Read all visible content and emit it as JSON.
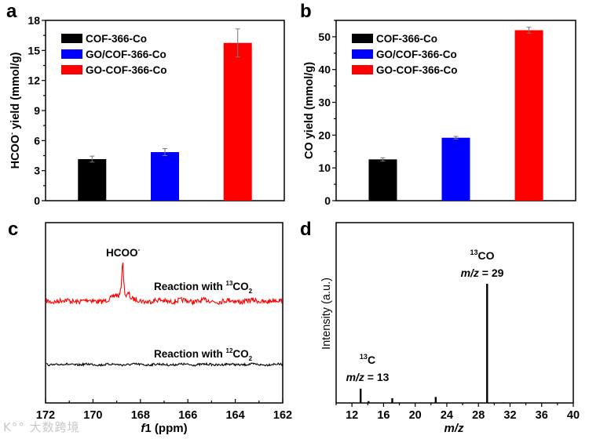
{
  "chart_data": [
    {
      "panel_label": "a",
      "type": "bar",
      "categories": [
        "COF-366-Co",
        "GO/COF-366-Co",
        "GO-COF-366-Co"
      ],
      "values": [
        4.15,
        4.85,
        15.75
      ],
      "errors": [
        0.3,
        0.35,
        1.4
      ],
      "colors": [
        "#000000",
        "#0000ff",
        "#ff0000"
      ],
      "ylabel_parts": [
        "HCOO",
        "-",
        " yield (mmol/g)"
      ],
      "xlabel": "",
      "ylim": [
        0,
        18
      ],
      "yticks": [
        0,
        3,
        6,
        9,
        12,
        15,
        18
      ],
      "legend": {
        "entries": [
          "COF-366-Co",
          "GO/COF-366-Co",
          "GO-COF-366-Co"
        ],
        "placement": "top-left"
      },
      "grid": false
    },
    {
      "panel_label": "b",
      "type": "bar",
      "categories": [
        "COF-366-Co",
        "GO/COF-366-Co",
        "GO-COF-366-Co"
      ],
      "values": [
        12.6,
        19.2,
        52.0
      ],
      "errors": [
        0.5,
        0.4,
        0.9
      ],
      "colors": [
        "#000000",
        "#0000ff",
        "#ff0000"
      ],
      "ylabel": "CO yield (mmol/g)",
      "xlabel": "",
      "ylim": [
        0,
        55
      ],
      "yticks": [
        0,
        10,
        20,
        30,
        40,
        50
      ],
      "legend": {
        "entries": [
          "COF-366-Co",
          "GO/COF-366-Co",
          "GO-COF-366-Co"
        ],
        "placement": "top-left"
      },
      "grid": false
    },
    {
      "panel_label": "c",
      "type": "line",
      "xlabel_italic": "f",
      "xlabel_rest": "1 (ppm)",
      "xlim": [
        172,
        162
      ],
      "xticks": [
        172,
        170,
        168,
        166,
        164,
        162
      ],
      "series": [
        {
          "name_parts": [
            "Reaction with ",
            "13",
            "CO",
            "2"
          ],
          "color": "#ff0000",
          "peak_ppm": 168.75,
          "peak_label_parts": [
            "HCOO",
            "-"
          ]
        },
        {
          "name_parts": [
            "Reaction with ",
            "12",
            "CO",
            "2"
          ],
          "color": "#000000"
        }
      ],
      "grid": false
    },
    {
      "panel_label": "d",
      "type": "bar",
      "subtype": "mass-spectrum",
      "xlabel": "m/z",
      "ylabel": "Intensity (a.u.)",
      "xlim": [
        10,
        40
      ],
      "xticks": [
        12,
        16,
        20,
        24,
        28,
        32,
        36,
        40
      ],
      "x": [
        13.1,
        14.1,
        17.1,
        22.6,
        29.1,
        31.1
      ],
      "values": [
        0.12,
        0.015,
        0.04,
        0.05,
        1.0,
        0.005
      ],
      "annotations": [
        {
          "iso": "13",
          "species": "CO",
          "mz_label": "m/z",
          "mz_value": " = 29"
        },
        {
          "iso": "13",
          "species": "C",
          "mz_label": "m/z",
          "mz_value": " = 13"
        }
      ],
      "grid": false
    }
  ],
  "watermark": "大数跨境"
}
